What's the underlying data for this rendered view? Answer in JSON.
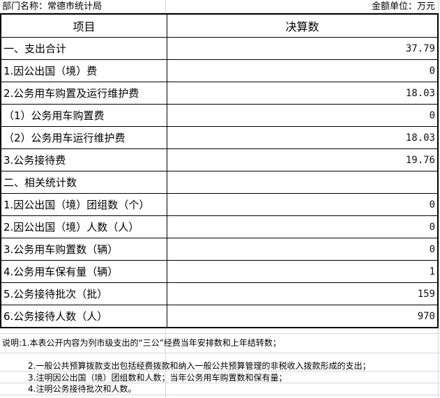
{
  "header": {
    "department": "部门名称：常德市统计局",
    "unit": "金额单位：万元"
  },
  "table": {
    "columns": [
      "项目",
      "决算数"
    ],
    "rows": [
      {
        "item": "一、支出合计",
        "value": "37.79"
      },
      {
        "item": "1.因公出国（境）费",
        "value": "0"
      },
      {
        "item": "2.公务用车购置及运行维护费",
        "value": "18.03"
      },
      {
        "item": "（1）公务用车购置费",
        "value": "0"
      },
      {
        "item": "（2）公务用车运行维护费",
        "value": "18.03"
      },
      {
        "item": "3.公务接待费",
        "value": "19.76"
      },
      {
        "item": "二、相关统计数",
        "value": ""
      },
      {
        "item": "1.因公出国（境）团组数（个）",
        "value": "0"
      },
      {
        "item": "2.因公出国（境）人数（人）",
        "value": "0"
      },
      {
        "item": "3.公务用车购置数（辆）",
        "value": "0"
      },
      {
        "item": "4.公务用车保有量（辆）",
        "value": "1"
      },
      {
        "item": "5.公务接待批次（批）",
        "value": "159"
      },
      {
        "item": "6.公务接待人数（人）",
        "value": "970"
      }
    ]
  },
  "notes": [
    "说明:1.本表公开内容为列市级支出的“三公”经费当年安排数和上年结转数；",
    "2.一般公共预算拨款支出包括经费拨款和纳入一般公共预算管理的非税收入拨款形成的支出；",
    "3.注明因公出国（境）团组数和人数；当年公务用车购置数和保有量；",
    "4.注明公务接待批次和人数。"
  ]
}
